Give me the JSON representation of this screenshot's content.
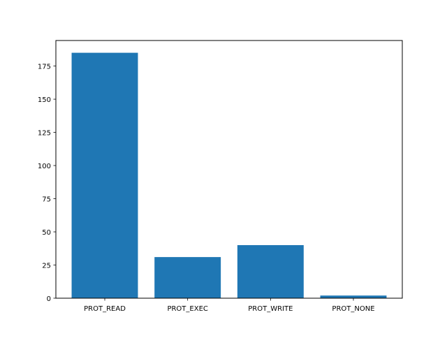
{
  "chart_data": {
    "type": "bar",
    "title": "",
    "xlabel": "",
    "ylabel": "",
    "categories": [
      "PROT_READ",
      "PROT_EXEC",
      "PROT_WRITE",
      "PROT_NONE"
    ],
    "values": [
      185,
      31,
      40,
      2
    ],
    "ylim": [
      0,
      194.25
    ],
    "yticks": [
      0,
      25,
      50,
      75,
      100,
      125,
      150,
      175
    ],
    "bar_color": "#1f77b4",
    "grid": false,
    "legend": "none"
  }
}
